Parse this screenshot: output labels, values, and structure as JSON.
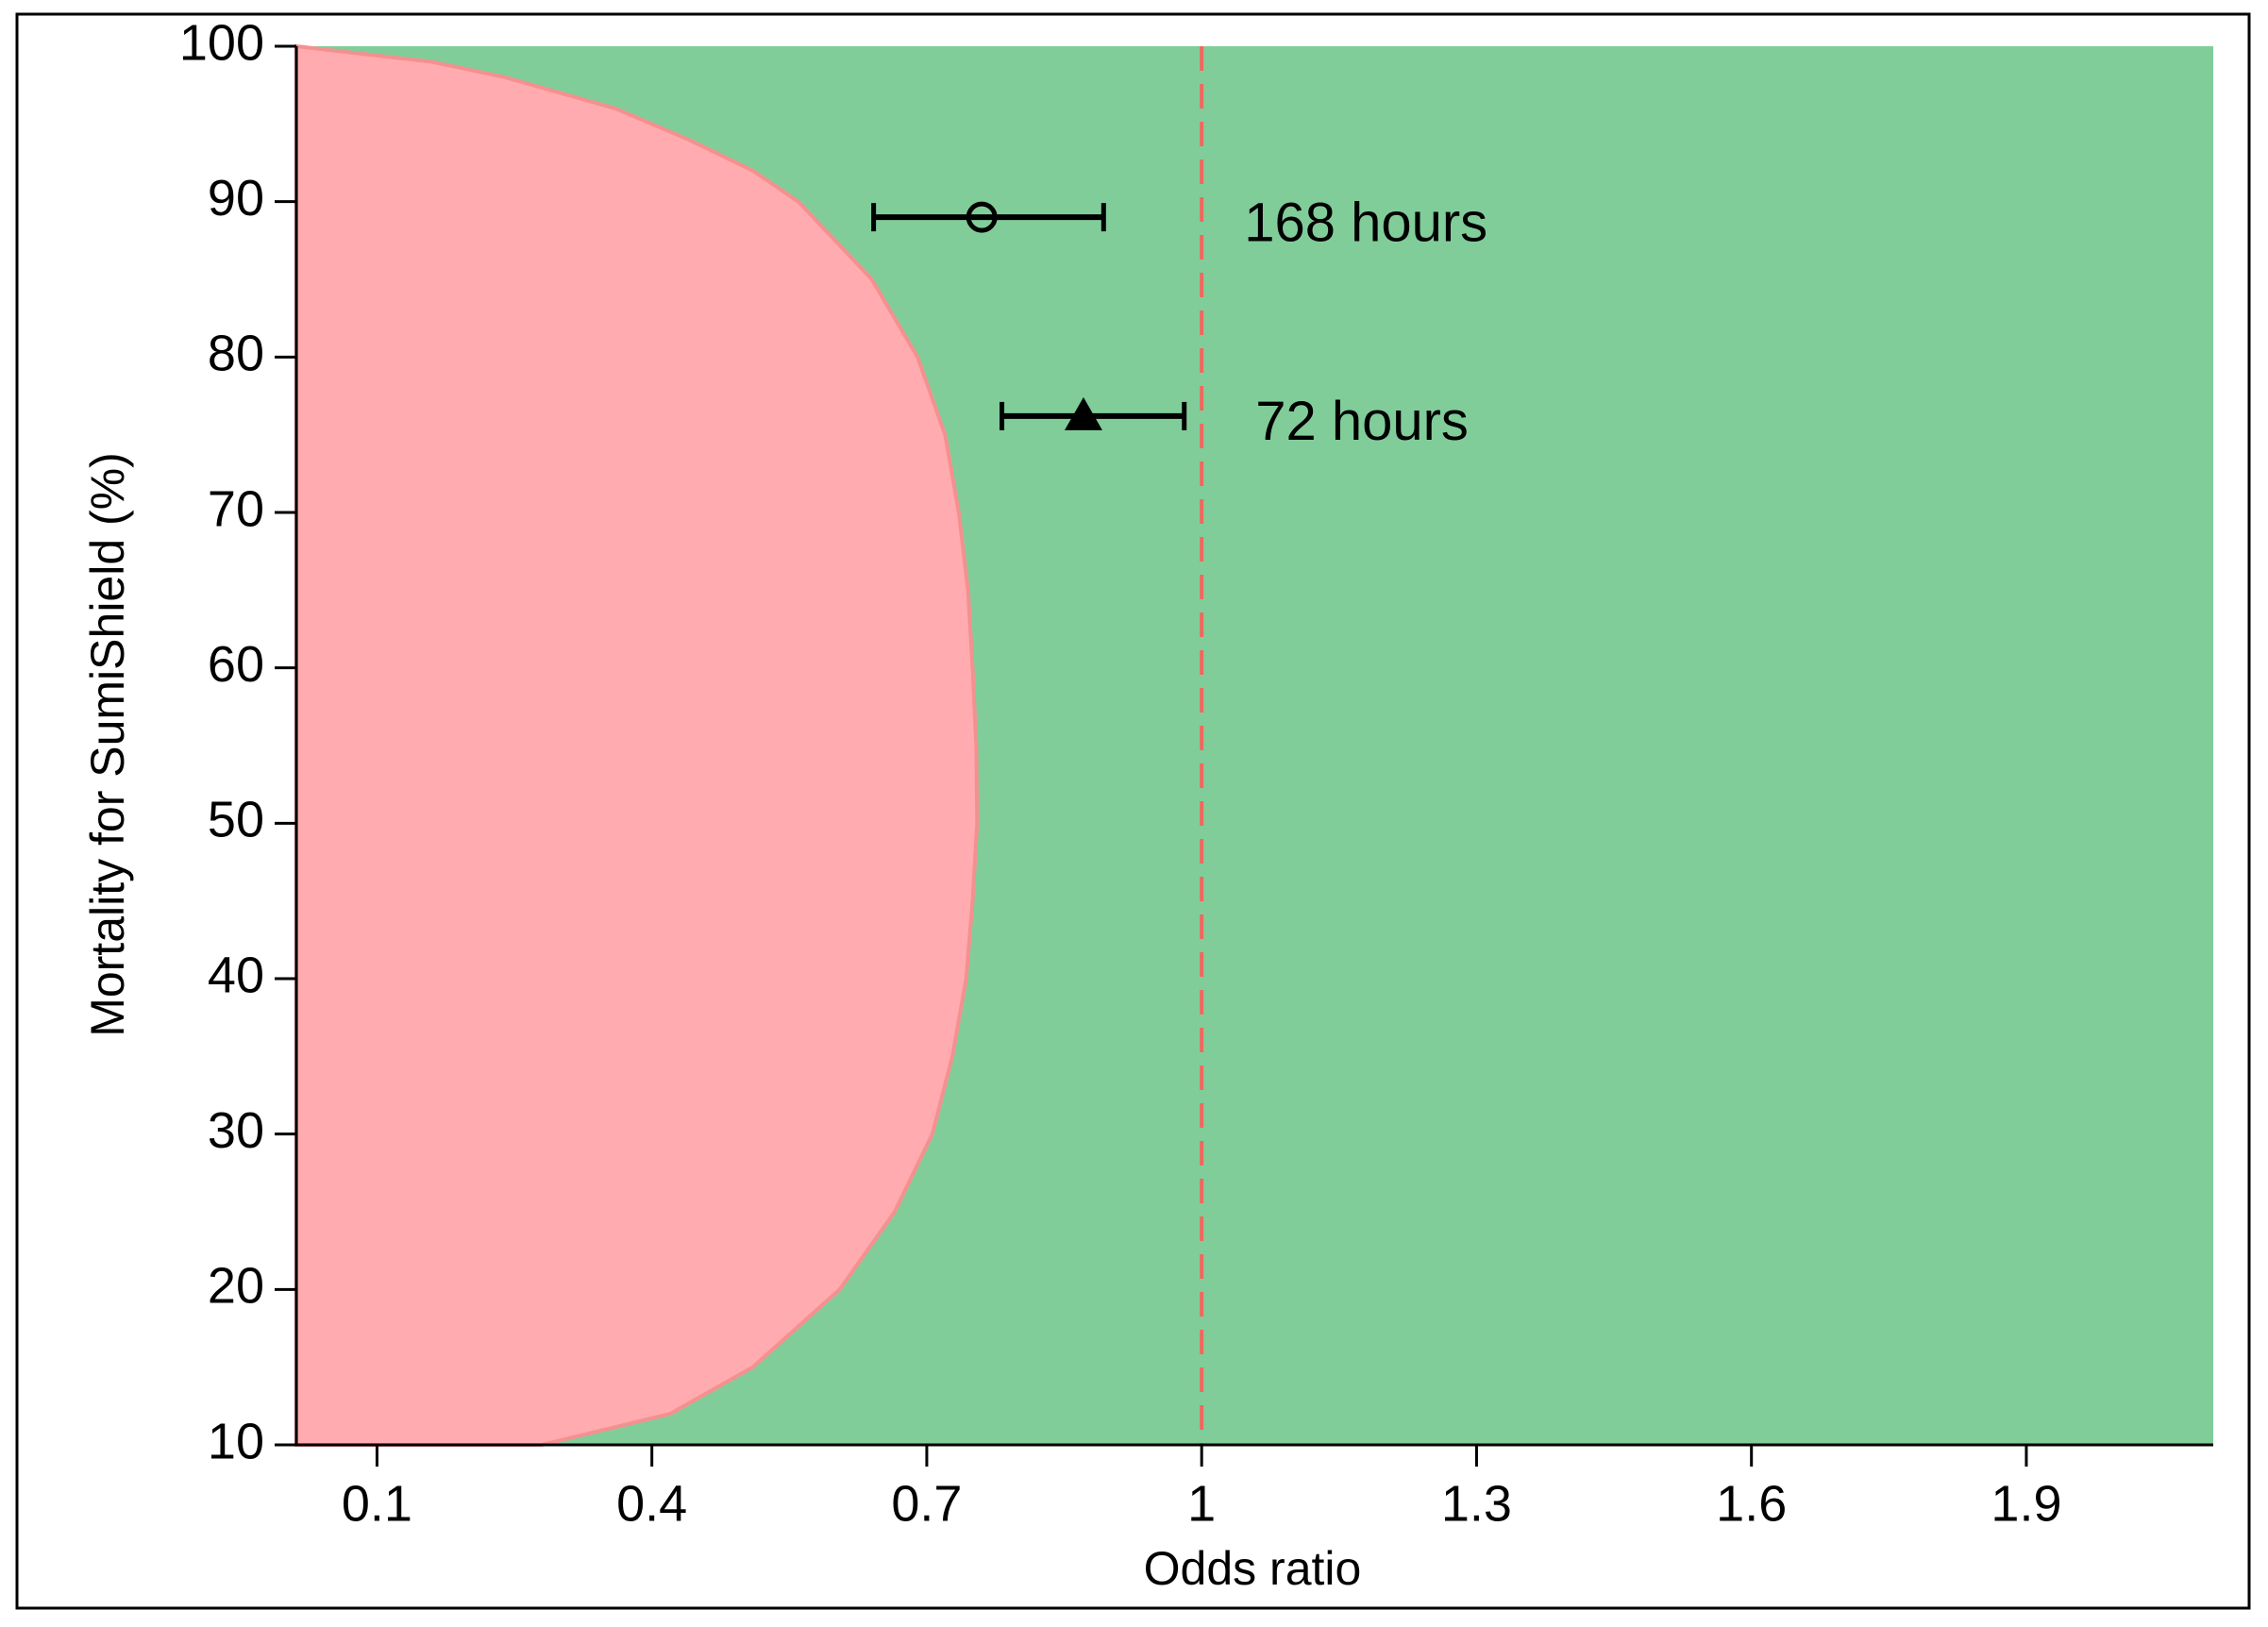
{
  "chart_data": {
    "type": "region-forest",
    "xlabel": "Odds ratio",
    "ylabel": "Mortality for SumiShield (%)",
    "xlim": [
      0.012,
      2.104
    ],
    "ylim": [
      10,
      100
    ],
    "xticks": [
      0.1,
      0.4,
      0.7,
      1,
      1.3,
      1.6,
      1.9
    ],
    "yticks": [
      10,
      20,
      30,
      40,
      50,
      60,
      70,
      80,
      90,
      100
    ],
    "background_color": "#81cd9a",
    "region": {
      "color": "#ffabaf",
      "edge_color": "#f59090",
      "mortality": [
        100,
        99,
        98,
        96,
        94,
        92,
        90,
        85,
        80,
        75,
        70,
        65,
        60,
        55,
        50,
        45,
        40,
        35,
        30,
        25,
        20,
        15,
        12,
        10
      ],
      "odds_ratio": [
        0.012,
        0.16,
        0.24,
        0.36,
        0.44,
        0.51,
        0.56,
        0.64,
        0.69,
        0.72,
        0.735,
        0.745,
        0.75,
        0.754,
        0.755,
        0.75,
        0.743,
        0.728,
        0.706,
        0.665,
        0.605,
        0.51,
        0.42,
        0.28
      ]
    },
    "reference_line": {
      "x": 1,
      "color": "#f0675e"
    },
    "series": [
      {
        "name": "168 hours",
        "marker": "circle",
        "color": "#000000",
        "x": 0.76,
        "lower": 0.642,
        "upper": 0.893,
        "y": 89.0
      },
      {
        "name": "72 hours",
        "marker": "triangle",
        "color": "#000000",
        "x": 0.871,
        "lower": 0.782,
        "upper": 0.981,
        "y": 76.2
      }
    ]
  }
}
